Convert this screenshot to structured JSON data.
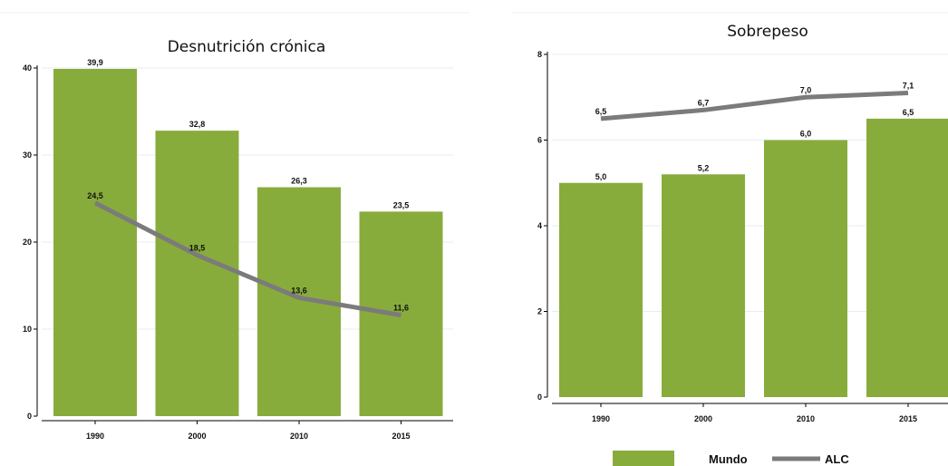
{
  "colors": {
    "bar": "#88ac3c",
    "line": "#7b7b7b",
    "axis": "#000000",
    "grid": "#e4eef6"
  },
  "legend": {
    "bar_label": "Mundo",
    "line_label": "ALC",
    "placement": "bottom"
  },
  "chart_data": [
    {
      "type": "bar",
      "title": "Desnutrición crónica",
      "categories": [
        "1990",
        "2000",
        "2010",
        "2015"
      ],
      "ylim": [
        0,
        40
      ],
      "yticks": [
        0,
        10,
        20,
        30,
        40
      ],
      "ytick_labels": [
        "0",
        "10",
        "20",
        "30",
        "40"
      ],
      "grid": true,
      "series": [
        {
          "name": "Mundo",
          "kind": "bar",
          "values": [
            39.9,
            32.8,
            26.3,
            23.5
          ],
          "labels": [
            "39,9",
            "32,8",
            "26,3",
            "23,5"
          ]
        },
        {
          "name": "ALC",
          "kind": "line",
          "values": [
            24.5,
            18.5,
            13.6,
            11.6
          ],
          "labels": [
            "24,5",
            "18,5",
            "13,6",
            "11,6"
          ]
        }
      ]
    },
    {
      "type": "bar",
      "title": "Sobrepeso",
      "categories": [
        "1990",
        "2000",
        "2010",
        "2015"
      ],
      "ylim": [
        0,
        8
      ],
      "yticks": [
        0,
        2,
        4,
        6,
        8
      ],
      "ytick_labels": [
        "0",
        "2",
        "4",
        "6",
        "8"
      ],
      "grid": true,
      "series": [
        {
          "name": "Mundo",
          "kind": "bar",
          "values": [
            5.0,
            5.2,
            6.0,
            6.5
          ],
          "labels": [
            "5,0",
            "5,2",
            "6,0",
            "6,5"
          ]
        },
        {
          "name": "ALC",
          "kind": "line",
          "values": [
            6.5,
            6.7,
            7.0,
            7.1
          ],
          "labels": [
            "6,5",
            "6,7",
            "7,0",
            "7,1"
          ]
        }
      ]
    }
  ]
}
